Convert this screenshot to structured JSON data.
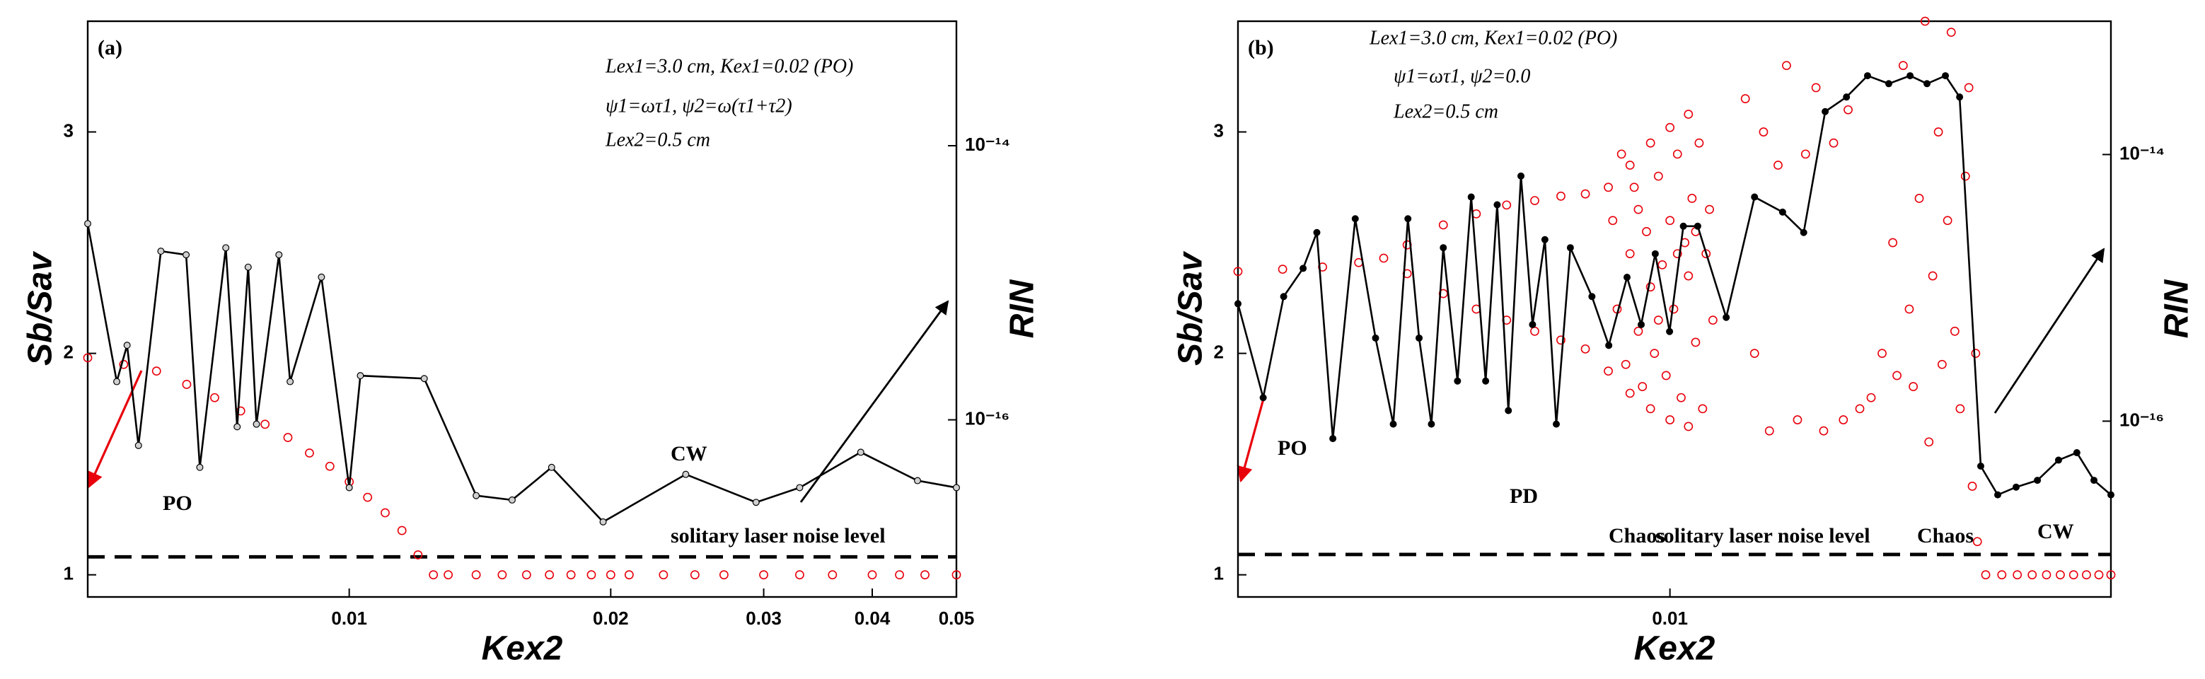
{
  "chart_data": [
    {
      "type": "scatter",
      "panel_label": "(a)",
      "xlabel": "Kex2",
      "ylabel": "Sb/Sav",
      "y2label": "RIN",
      "xscale": "log",
      "xlim": [
        0.005,
        0.05
      ],
      "xticks": [
        0.01,
        0.02,
        0.03,
        0.04,
        0.05
      ],
      "ylim": [
        0.9,
        3.5
      ],
      "yticks": [
        1,
        2,
        3
      ],
      "y2scale": "log",
      "y2lim": [
        5.1e-18,
        8.1e-14
      ],
      "y2ticks": [
        {
          "value": 1e-14,
          "label": "10⁻¹⁴"
        },
        {
          "value": 1e-16,
          "label": "10⁻¹⁶"
        }
      ],
      "annotations": [
        "Lex1=3.0 cm, Kex1=0.02  (PO)",
        "ψ1=ωτ1, ψ2=ω(τ1+τ2)",
        "Lex2=0.5 cm",
        "PO",
        "CW"
      ],
      "noise_level": {
        "label": "solitary laser noise level",
        "value": 1e-17
      },
      "series": [
        {
          "color": "#e8000b",
          "line": false,
          "x": [
            0.005,
            0.0055,
            0.006,
            0.0065,
            0.007,
            0.0075,
            0.008,
            0.0085,
            0.009,
            0.0095,
            0.01,
            0.0105,
            0.011,
            0.0115,
            0.012,
            0.0125,
            0.013,
            0.014,
            0.015,
            0.016,
            0.017,
            0.018,
            0.019,
            0.02,
            0.021,
            0.023,
            0.025,
            0.027,
            0.03,
            0.033,
            0.036,
            0.04,
            0.043,
            0.046,
            0.05
          ],
          "values": [
            1.98,
            1.95,
            1.92,
            1.86,
            1.8,
            1.74,
            1.68,
            1.62,
            1.55,
            1.49,
            1.42,
            1.35,
            1.28,
            1.2,
            1.09,
            1.0,
            1.0,
            1.0,
            1.0,
            1.0,
            1.0,
            1.0,
            1.0,
            1.0,
            1.0,
            1.0,
            1.0,
            1.0,
            1.0,
            1.0,
            1.0,
            1.0,
            1.0,
            1.0,
            1.0
          ]
        },
        {
          "color": "#000000",
          "axis": "y2",
          "line": true,
          "marker_fill": "#d0d0d0",
          "x": [
            0.005,
            0.0054,
            0.00555,
            0.00572,
            0.00607,
            0.00649,
            0.00673,
            0.00721,
            0.00743,
            0.00765,
            0.00782,
            0.0083,
            0.00855,
            0.00929,
            0.01,
            0.0103,
            0.0122,
            0.014,
            0.0154,
            0.0171,
            0.0196,
            0.0244,
            0.0294,
            0.033,
            0.0388,
            0.0451,
            0.05
          ],
          "values": [
            2.7e-15,
            1.9e-16,
            3.5e-16,
            6.5e-17,
            1.7e-15,
            1.6e-15,
            4.5e-17,
            1.8e-15,
            8.9e-17,
            1.3e-15,
            9.3e-17,
            1.6e-15,
            1.9e-16,
            1.1e-15,
            3.2e-17,
            2.1e-16,
            2e-16,
            2.8e-17,
            2.6e-17,
            4.5e-17,
            1.8e-17,
            4e-17,
            2.5e-17,
            3.2e-17,
            5.8e-17,
            3.6e-17,
            3.2e-17
          ]
        }
      ]
    },
    {
      "type": "scatter",
      "panel_label": "(b)",
      "xlabel": "Kex2",
      "ylabel": "Sb/Sav",
      "y2label": "RIN",
      "xscale": "log",
      "xlim": [
        0.0032,
        0.032
      ],
      "xticks": [
        0.01
      ],
      "ylim": [
        0.9,
        3.5
      ],
      "yticks": [
        1,
        2,
        3
      ],
      "y2scale": "log",
      "y2lim": [
        4.8e-18,
        1e-13
      ],
      "y2ticks": [
        {
          "value": 1e-14,
          "label": "10⁻¹⁴"
        },
        {
          "value": 1e-16,
          "label": "10⁻¹⁶"
        }
      ],
      "annotations": [
        "Lex1=3.0 cm, Kex1=0.02 (PO)",
        "ψ1=ωτ1, ψ2=0.0",
        "Lex2=0.5 cm",
        "PO",
        "PD",
        "Chaos",
        "Chaos",
        "CW"
      ],
      "noise_level": {
        "label": "solitary laser noise level",
        "value": 1e-17
      },
      "series": [
        {
          "color": "#e8000b",
          "line": false,
          "x": [
            0.0032,
            0.0036,
            0.004,
            0.0044,
            0.0047,
            0.005,
            0.0055,
            0.006,
            0.0065,
            0.007,
            0.0075,
            0.008,
            0.0085,
            0.009,
            0.0095,
            0.01,
            0.0105,
            0.005,
            0.0055,
            0.006,
            0.0065,
            0.007,
            0.0075,
            0.008,
            0.0085,
            0.009,
            0.0095,
            0.01,
            0.0105,
            0.0086,
            0.0087,
            0.0088,
            0.0089,
            0.009,
            0.0091,
            0.0092,
            0.0093,
            0.0094,
            0.0095,
            0.0096,
            0.0097,
            0.0098,
            0.0099,
            0.01,
            0.0101,
            0.0102,
            0.0103,
            0.0104,
            0.0105,
            0.0106,
            0.0107,
            0.0108,
            0.0109,
            0.011,
            0.0111,
            0.0112,
            0.0092,
            0.0097,
            0.0102,
            0.0107,
            0.0122,
            0.0125,
            0.0128,
            0.013,
            0.0133,
            0.0136,
            0.014,
            0.0143,
            0.0147,
            0.015,
            0.0154,
            0.0158,
            0.016,
            0.0165,
            0.017,
            0.0175,
            0.018,
            0.0182,
            0.0185,
            0.0188,
            0.019,
            0.0193,
            0.0196,
            0.0198,
            0.02,
            0.0203,
            0.0205,
            0.0208,
            0.021,
            0.0212,
            0.0215,
            0.0218,
            0.022,
            0.0222,
            0.0224,
            0.0225,
            0.023,
            0.024,
            0.025,
            0.026,
            0.027,
            0.028,
            0.029,
            0.03,
            0.031,
            0.032
          ],
          "values": [
            2.37,
            2.38,
            2.39,
            2.41,
            2.43,
            2.49,
            2.58,
            2.63,
            2.67,
            2.69,
            2.71,
            2.72,
            2.75,
            2.85,
            2.95,
            3.02,
            3.08,
            2.36,
            2.27,
            2.2,
            2.15,
            2.1,
            2.06,
            2.02,
            1.92,
            1.82,
            1.75,
            1.7,
            1.67,
            2.6,
            2.2,
            2.9,
            1.95,
            2.45,
            2.75,
            2.1,
            1.85,
            2.55,
            2.3,
            2.0,
            2.8,
            2.4,
            1.9,
            2.6,
            2.2,
            2.9,
            1.8,
            2.5,
            2.35,
            2.7,
            2.05,
            2.95,
            1.75,
            2.45,
            2.65,
            2.15,
            2.65,
            2.15,
            2.45,
            2.55,
            3.15,
            2.0,
            3.0,
            1.65,
            2.85,
            3.3,
            1.7,
            2.9,
            3.2,
            1.65,
            2.95,
            1.7,
            3.1,
            1.75,
            1.8,
            2.0,
            2.5,
            1.9,
            3.3,
            2.2,
            1.85,
            2.7,
            3.5,
            1.6,
            2.35,
            3.0,
            1.95,
            2.6,
            3.45,
            2.1,
            1.75,
            2.8,
            3.2,
            1.4,
            2.0,
            1.15,
            1.0,
            1.0,
            1.0,
            1.0,
            1.0,
            1.0,
            1.0,
            1.0,
            1.0,
            1.0
          ]
        },
        {
          "color": "#000000",
          "axis": "y2",
          "line": true,
          "marker_fill": "#000000",
          "x": [
            0.0032,
            0.00342,
            0.00361,
            0.0038,
            0.00394,
            0.00411,
            0.00436,
            0.0046,
            0.00482,
            0.00501,
            0.00516,
            0.00533,
            0.0055,
            0.00571,
            0.00592,
            0.00615,
            0.00634,
            0.00653,
            0.00675,
            0.00696,
            0.00719,
            0.00741,
            0.00769,
            0.00814,
            0.00851,
            0.00893,
            0.00927,
            0.00962,
            0.00999,
            0.01036,
            0.01076,
            0.0116,
            0.0125,
            0.01346,
            0.01423,
            0.01506,
            0.01593,
            0.01684,
            0.01781,
            0.01884,
            0.0197,
            0.02068,
            0.02147,
            0.0227,
            0.02374,
            0.02492,
            0.02636,
            0.02787,
            0.02925,
            0.0306,
            0.032
          ],
          "values": [
            7.6e-16,
            1.5e-16,
            8.6e-16,
            1.4e-15,
            2.6e-15,
            7.4e-17,
            3.3e-15,
            4.2e-16,
            9.5e-17,
            3.3e-15,
            4.2e-16,
            9.5e-17,
            2e-15,
            2e-16,
            4.8e-15,
            2e-16,
            4.2e-15,
            1.2e-16,
            6.9e-15,
            5.3e-16,
            2.3e-15,
            9.5e-17,
            2e-15,
            8.6e-16,
            3.7e-16,
            1.2e-15,
            5.3e-16,
            1.8e-15,
            4.7e-16,
            2.9e-15,
            2.9e-15,
            6e-16,
            4.8e-15,
            3.7e-15,
            2.6e-15,
            2.1e-14,
            2.7e-14,
            3.9e-14,
            3.4e-14,
            3.9e-14,
            3.4e-14,
            3.9e-14,
            2.7e-14,
            4.6e-17,
            2.8e-17,
            3.2e-17,
            3.6e-17,
            5.1e-17,
            5.8e-17,
            3.6e-17,
            2.8e-17
          ]
        }
      ]
    }
  ]
}
